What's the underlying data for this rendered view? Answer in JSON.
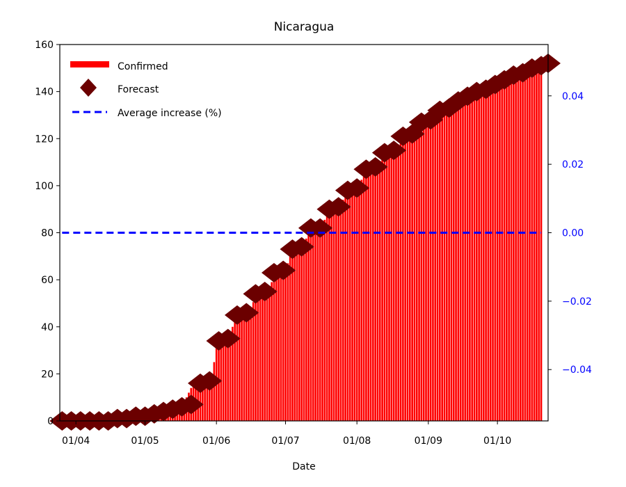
{
  "chart_data": {
    "type": "bar",
    "title": "Nicaragua",
    "xlabel": "Date",
    "ylabel": "",
    "ylim": [
      0,
      160
    ],
    "y_ticks": [
      0,
      20,
      40,
      60,
      80,
      100,
      120,
      140,
      160
    ],
    "x_ticks": [
      {
        "label": "01/04",
        "value": "2020-04-01"
      },
      {
        "label": "01/05",
        "value": "2020-05-01"
      },
      {
        "label": "01/06",
        "value": "2020-06-01"
      },
      {
        "label": "01/07",
        "value": "2020-07-01"
      },
      {
        "label": "01/08",
        "value": "2020-08-01"
      },
      {
        "label": "01/09",
        "value": "2020-09-01"
      },
      {
        "label": "01/10",
        "value": "2020-10-01"
      }
    ],
    "xlim": [
      "2020-03-25",
      "2020-10-23"
    ],
    "y2lim": [
      -0.055,
      0.055
    ],
    "y2_ticks": [
      "0.04",
      "0.02",
      "0.00",
      "−0.02",
      "−0.04"
    ],
    "y2_values": [
      0.04,
      0.02,
      0.0,
      -0.02,
      -0.04
    ],
    "y2_color": "#0000ff",
    "confirmed_color": "#ff0000",
    "forecast_color": "#6b0000",
    "average_color": "#0000ff",
    "legend_position": "top-left",
    "legend": {
      "confirmed": "Confirmed",
      "forecast": "Forecast",
      "average": "Average increase (%)"
    },
    "confirmed_x": [
      "2020-03-26",
      "2020-10-20"
    ],
    "series": [
      {
        "name": "Confirmed",
        "kind": "bar",
        "anchors": [
          [
            "2020-03-26",
            0
          ],
          [
            "2020-04-20",
            1
          ],
          [
            "2020-04-30",
            3
          ],
          [
            "2020-05-10",
            5
          ],
          [
            "2020-05-13",
            5
          ],
          [
            "2020-05-18",
            8
          ],
          [
            "2020-05-22",
            16
          ],
          [
            "2020-05-30",
            17
          ],
          [
            "2020-06-01",
            33
          ],
          [
            "2020-06-06",
            35
          ],
          [
            "2020-06-10",
            45
          ],
          [
            "2020-06-15",
            46
          ],
          [
            "2020-06-19",
            55
          ],
          [
            "2020-06-23",
            55
          ],
          [
            "2020-06-27",
            63
          ],
          [
            "2020-07-01",
            64
          ],
          [
            "2020-07-04",
            73
          ],
          [
            "2020-07-08",
            74
          ],
          [
            "2020-07-12",
            81
          ],
          [
            "2020-07-16",
            82
          ],
          [
            "2020-07-20",
            89
          ],
          [
            "2020-07-24",
            91
          ],
          [
            "2020-07-28",
            97
          ],
          [
            "2020-08-01",
            99
          ],
          [
            "2020-08-05",
            106
          ],
          [
            "2020-08-09",
            108
          ],
          [
            "2020-08-13",
            113
          ],
          [
            "2020-08-17",
            115
          ],
          [
            "2020-08-21",
            120
          ],
          [
            "2020-08-25",
            122
          ],
          [
            "2020-08-29",
            126
          ],
          [
            "2020-09-02",
            128
          ],
          [
            "2020-09-06",
            131
          ],
          [
            "2020-09-10",
            133
          ],
          [
            "2020-09-14",
            136
          ],
          [
            "2020-09-18",
            138
          ],
          [
            "2020-09-22",
            140
          ],
          [
            "2020-09-26",
            141
          ],
          [
            "2020-09-30",
            143
          ],
          [
            "2020-10-04",
            145
          ],
          [
            "2020-10-08",
            147
          ],
          [
            "2020-10-12",
            149
          ],
          [
            "2020-10-16",
            151
          ],
          [
            "2020-10-20",
            152
          ]
        ]
      },
      {
        "name": "Forecast",
        "kind": "scatter",
        "points": [
          [
            "2020-03-26",
            0
          ],
          [
            "2020-03-30",
            0
          ],
          [
            "2020-04-03",
            0
          ],
          [
            "2020-04-07",
            0
          ],
          [
            "2020-04-11",
            0
          ],
          [
            "2020-04-15",
            0
          ],
          [
            "2020-04-19",
            1
          ],
          [
            "2020-04-23",
            1
          ],
          [
            "2020-04-27",
            2
          ],
          [
            "2020-05-01",
            2
          ],
          [
            "2020-05-05",
            3
          ],
          [
            "2020-05-09",
            4
          ],
          [
            "2020-05-13",
            5
          ],
          [
            "2020-05-17",
            6
          ],
          [
            "2020-05-21",
            7
          ],
          [
            "2020-05-25",
            16
          ],
          [
            "2020-05-29",
            17
          ],
          [
            "2020-06-02",
            34
          ],
          [
            "2020-06-06",
            35
          ],
          [
            "2020-06-10",
            45
          ],
          [
            "2020-06-14",
            46
          ],
          [
            "2020-06-18",
            54
          ],
          [
            "2020-06-22",
            55
          ],
          [
            "2020-06-26",
            63
          ],
          [
            "2020-06-30",
            64
          ],
          [
            "2020-07-04",
            73
          ],
          [
            "2020-07-08",
            74
          ],
          [
            "2020-07-12",
            82
          ],
          [
            "2020-07-16",
            82
          ],
          [
            "2020-07-20",
            90
          ],
          [
            "2020-07-24",
            91
          ],
          [
            "2020-07-28",
            98
          ],
          [
            "2020-08-01",
            99
          ],
          [
            "2020-08-05",
            107
          ],
          [
            "2020-08-09",
            108
          ],
          [
            "2020-08-13",
            114
          ],
          [
            "2020-08-17",
            115
          ],
          [
            "2020-08-21",
            121
          ],
          [
            "2020-08-25",
            122
          ],
          [
            "2020-08-29",
            127
          ],
          [
            "2020-09-02",
            128
          ],
          [
            "2020-09-06",
            132
          ],
          [
            "2020-09-10",
            133
          ],
          [
            "2020-09-14",
            136
          ],
          [
            "2020-09-18",
            138
          ],
          [
            "2020-09-22",
            140
          ],
          [
            "2020-09-26",
            141
          ],
          [
            "2020-09-30",
            143
          ],
          [
            "2020-10-04",
            145
          ],
          [
            "2020-10-08",
            147
          ],
          [
            "2020-10-12",
            148
          ],
          [
            "2020-10-16",
            150
          ],
          [
            "2020-10-20",
            151
          ],
          [
            "2020-10-23",
            152
          ]
        ]
      },
      {
        "name": "Average increase (%)",
        "kind": "line",
        "axis": "right",
        "x_range": [
          "2020-03-26",
          "2020-10-20"
        ],
        "value": 0.0
      }
    ]
  }
}
